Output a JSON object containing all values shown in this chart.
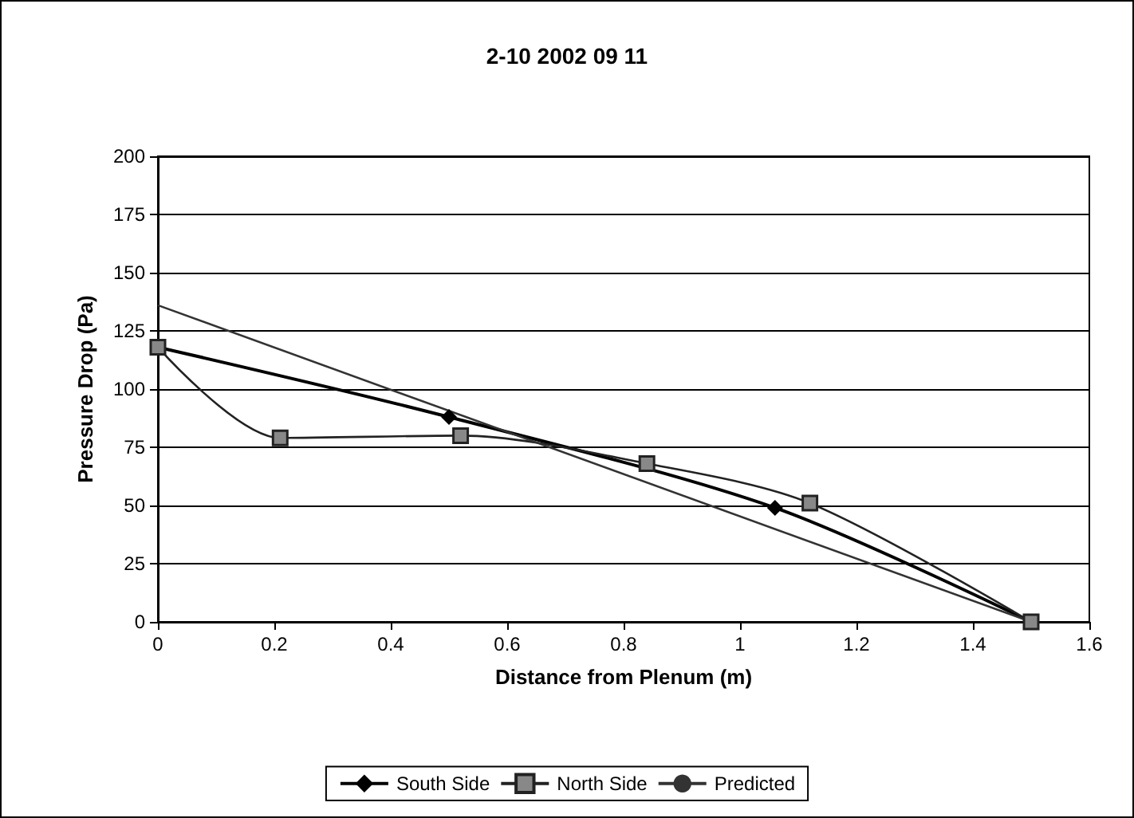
{
  "chart_data": {
    "type": "line",
    "title": "2-10 2002 09 11",
    "xlabel": "Distance from Plenum (m)",
    "ylabel": "Pressure Drop (Pa)",
    "xlim": [
      0,
      1.6
    ],
    "xticks": [
      0,
      0.2,
      0.4,
      0.6,
      0.8,
      1,
      1.2,
      1.4,
      1.6
    ],
    "ylim": [
      0,
      200
    ],
    "yticks": [
      0,
      25,
      50,
      75,
      100,
      125,
      150,
      175,
      200
    ],
    "grid": "y",
    "legend": "bottom",
    "series": [
      {
        "name": "South Side",
        "color": "#000000",
        "marker": "diamond",
        "x": [
          0,
          0.5,
          1.06,
          1.5
        ],
        "values": [
          118,
          88,
          49,
          0
        ]
      },
      {
        "name": "North Side",
        "color": "#222222",
        "marker": "square",
        "x": [
          0,
          0.21,
          0.52,
          0.84,
          1.12,
          1.5
        ],
        "values": [
          118,
          79,
          80,
          68,
          51,
          0
        ]
      },
      {
        "name": "Predicted",
        "color": "#333333",
        "marker": "none",
        "x": [
          0,
          1.5
        ],
        "values": [
          136,
          0
        ]
      }
    ]
  }
}
